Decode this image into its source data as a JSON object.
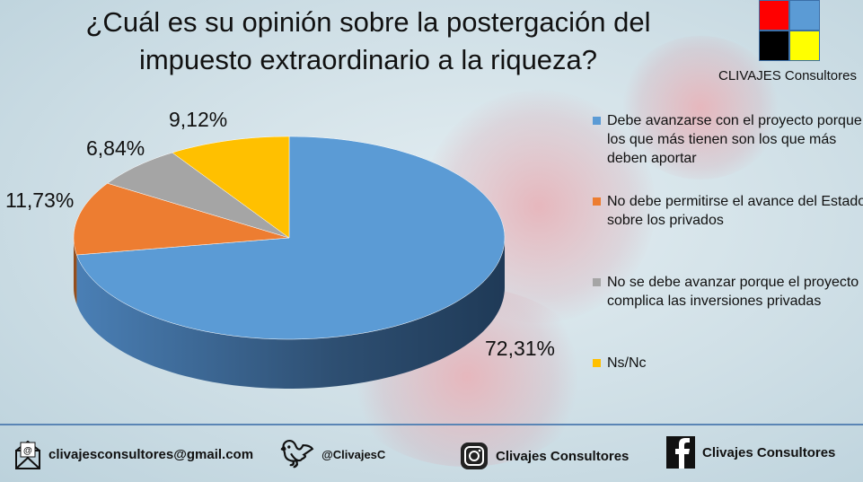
{
  "title_line1": "¿Cuál es su opinión sobre la postergación del",
  "title_line2": "impuesto extraordinario a la riqueza?",
  "logo": {
    "text": "CLIVAJES Consultores",
    "colors": [
      "#ff0000",
      "#5b9bd5",
      "#000000",
      "#ffff00"
    ]
  },
  "chart_data": {
    "type": "pie",
    "style": "3d",
    "categories": [
      "Debe avanzarse con el proyecto porque los que más tienen son los que más deben aportar",
      "No debe permitirse el avance del Estado sobre los privados",
      "No se debe avanzar porque el proyecto complica las inversiones privadas",
      "Ns/Nc"
    ],
    "values": [
      72.31,
      11.73,
      6.84,
      9.12
    ],
    "labels": [
      "72,31%",
      "11,73%",
      "6,84%",
      "9,12%"
    ],
    "colors": [
      "#5b9bd5",
      "#ed7d31",
      "#a5a5a5",
      "#ffc000"
    ],
    "legend_position": "right"
  },
  "footer": {
    "email": "clivajesconsultores@gmail.com",
    "twitter": "@ClivajesC",
    "instagram": "Clivajes Consultores",
    "facebook": "Clivajes Consultores"
  }
}
